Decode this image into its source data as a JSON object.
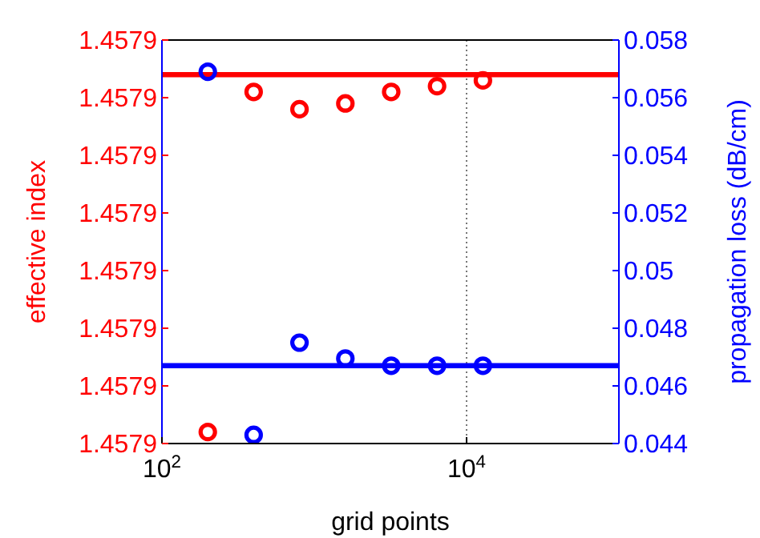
{
  "chart_data": {
    "type": "scatter",
    "xlabel": "grid points",
    "ylabel": "effective index",
    "y2label": "propagation loss (dB/cm)",
    "log": "x",
    "grid": "x",
    "xlim": [
      100,
      100000
    ],
    "xticks": [
      {
        "value": 100,
        "label": "10$^{2}$"
      },
      {
        "value": 10000,
        "label": "10$^{4}$"
      }
    ],
    "ylim": [
      1.45786,
      1.45793
    ],
    "yticks": [
      {
        "value": 1.45786,
        "label": "1.4579"
      },
      {
        "value": 1.45787,
        "label": "1.4579"
      },
      {
        "value": 1.45788,
        "label": "1.4579"
      },
      {
        "value": 1.45789,
        "label": "1.4579"
      },
      {
        "value": 1.4579,
        "label": "1.4579"
      },
      {
        "value": 1.45791,
        "label": "1.4579"
      },
      {
        "value": 1.45792,
        "label": "1.4579"
      },
      {
        "value": 1.45793,
        "label": "1.4579"
      }
    ],
    "y2lim": [
      0.044,
      0.058
    ],
    "y2ticks": [
      0.044,
      0.046,
      0.048,
      0.05,
      0.052,
      0.054,
      0.056,
      0.058
    ],
    "series": [
      {
        "type": "line",
        "color": "#ff0000",
        "x": [
          100,
          100000
        ],
        "values": [
          1.457924,
          1.457924
        ]
      },
      {
        "type": "line",
        "color": "#0000ff",
        "axis": "y2",
        "x": [
          100,
          100000
        ],
        "values": [
          0.0467,
          0.0467
        ]
      },
      {
        "marker": "circle",
        "color": "#ff0000",
        "x": [
          200,
          400,
          800,
          1600,
          3200,
          6400,
          12800
        ],
        "values": [
          1.457862,
          1.457921,
          1.457918,
          1.457919,
          1.457921,
          1.457922,
          1.457923
        ]
      },
      {
        "marker": "circle",
        "color": "#0000ff",
        "axis": "y2",
        "x": [
          200,
          400,
          800,
          1600,
          3200,
          6400,
          12800
        ],
        "values": [
          0.0569,
          0.0443,
          0.0475,
          0.04695,
          0.0467,
          0.0467,
          0.0467
        ]
      }
    ]
  }
}
